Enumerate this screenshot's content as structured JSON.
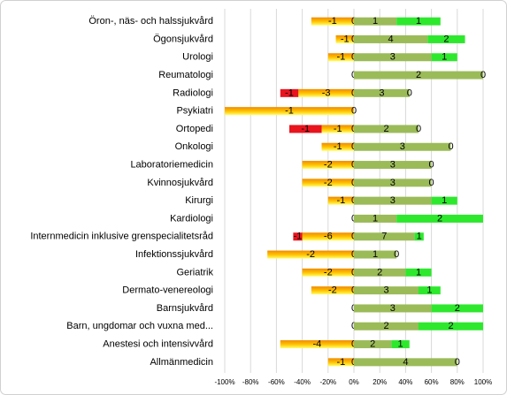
{
  "chart_data": {
    "type": "diverging-bar",
    "categories": [
      "Öron-, näs- och halssjukvård",
      "Ögonsjukvård",
      "Urologi",
      "Reumatologi",
      "Radiologi",
      "Psykiatri",
      "Ortopedi",
      "Onkologi",
      "Laboratoriemedicin",
      "Kvinnosjukvård",
      "Kirurgi",
      "Kardiologi",
      "Internmedicin inklusive grenspecialitetsråd",
      "Infektionssjukvård",
      "Geriatrik",
      "Dermato-venereologi",
      "Barnsjukvård",
      "Barn, ungdomar och vuxna med...",
      "Anestesi och intensivvård",
      "Allmänmedicin"
    ],
    "xlim": [
      -100,
      100
    ],
    "xticks": [
      {
        "value": -100,
        "label": "-100%"
      },
      {
        "value": -80,
        "label": "-80%"
      },
      {
        "value": -60,
        "label": "-60%"
      },
      {
        "value": -40,
        "label": "-40%"
      },
      {
        "value": -20,
        "label": "-20%"
      },
      {
        "value": 0,
        "label": "0%"
      },
      {
        "value": 20,
        "label": "20%"
      },
      {
        "value": 40,
        "label": "40%"
      },
      {
        "value": 60,
        "label": "60%"
      },
      {
        "value": 80,
        "label": "80%"
      },
      {
        "value": 100,
        "label": "100%"
      }
    ],
    "grid": true,
    "series": [
      {
        "color": "#f59a0a",
        "side": "negative",
        "values": [
          -33,
          -14,
          -20,
          0,
          -43,
          -100,
          -25,
          -25,
          -40,
          -40,
          -20,
          0,
          -40,
          -67,
          -40,
          -33,
          0,
          0,
          -57,
          -20
        ],
        "labels": [
          "-1",
          "-1",
          "-1",
          null,
          "-3",
          "-1",
          "-1",
          "-1",
          "-2",
          "-2",
          "-1",
          null,
          "-6",
          "-2",
          "-2",
          "-2",
          null,
          null,
          "-4",
          "-1"
        ]
      },
      {
        "color": "#e8141e",
        "side": "negative",
        "values": [
          0,
          0,
          0,
          0,
          -14,
          0,
          -25,
          0,
          0,
          0,
          0,
          0,
          -7,
          0,
          0,
          0,
          0,
          0,
          0,
          0
        ],
        "labels": [
          null,
          null,
          null,
          null,
          "-1",
          null,
          "-1",
          null,
          null,
          null,
          null,
          null,
          "-1",
          null,
          null,
          null,
          null,
          null,
          null,
          null
        ]
      },
      {
        "color": "#000000",
        "side": "neutral",
        "values": [
          0,
          0,
          0,
          0,
          0,
          0,
          0,
          0,
          0,
          0,
          0,
          0,
          0,
          0,
          0,
          0,
          0,
          0,
          0,
          0
        ],
        "labels": [
          "0",
          "0",
          "0",
          "0",
          "0",
          "0",
          "0",
          "0",
          "0",
          "0",
          "0",
          "0",
          "0",
          "0",
          "0",
          "0",
          "0",
          "0",
          "0",
          "0"
        ]
      },
      {
        "color": "#9bbb59",
        "side": "positive",
        "values": [
          33,
          57,
          60,
          100,
          43,
          0,
          50,
          75,
          60,
          60,
          60,
          33,
          47,
          33,
          40,
          50,
          60,
          50,
          29,
          80
        ],
        "labels": [
          "1",
          "4",
          "3",
          "2",
          "3",
          null,
          "2",
          "3",
          "3",
          "3",
          "3",
          "1",
          "7",
          "1",
          "2",
          "3",
          "3",
          "2",
          "2",
          "4"
        ]
      },
      {
        "color": "#2ee82e",
        "side": "positive",
        "values": [
          34,
          29,
          20,
          0,
          0,
          0,
          0,
          0,
          0,
          0,
          20,
          67,
          7,
          0,
          20,
          17,
          40,
          50,
          14,
          0
        ],
        "labels": [
          "1",
          "2",
          "1",
          "0",
          "0",
          null,
          "0",
          "0",
          "0",
          "0",
          "1",
          "2",
          "1",
          "0",
          "1",
          "1",
          "2",
          "2",
          "1",
          "0"
        ]
      }
    ]
  }
}
